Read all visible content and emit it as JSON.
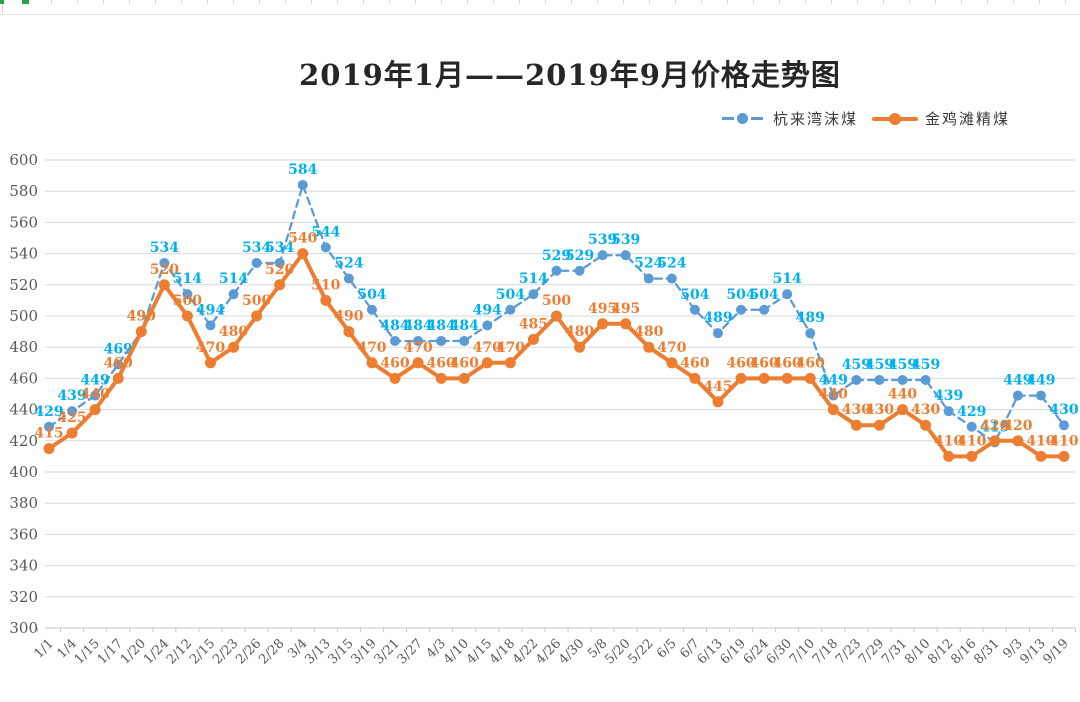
{
  "chart_data": {
    "type": "line",
    "title": "2019年1月——2019年9月价格走势图",
    "categories": [
      "1/1",
      "1/4",
      "1/15",
      "1/17",
      "1/20",
      "1/24",
      "2/12",
      "2/15",
      "2/23",
      "2/26",
      "2/28",
      "3/4",
      "3/13",
      "3/15",
      "3/19",
      "3/21",
      "3/27",
      "4/3",
      "4/10",
      "4/15",
      "4/18",
      "4/22",
      "4/26",
      "4/30",
      "5/8",
      "5/20",
      "5/22",
      "6/5",
      "6/7",
      "6/13",
      "6/19",
      "6/24",
      "6/30",
      "7/10",
      "7/18",
      "7/23",
      "7/29",
      "7/31",
      "8/10",
      "8/12",
      "8/16",
      "8/31",
      "9/3",
      "9/13",
      "9/19"
    ],
    "series": [
      {
        "name": "杭来湾沫煤",
        "style": "dashed",
        "color": "#5B9BD5",
        "label_color": "#00B0F0",
        "values": [
          429,
          439,
          449,
          469,
          490,
          534,
          514,
          494,
          514,
          534,
          534,
          584,
          544,
          524,
          504,
          484,
          484,
          484,
          484,
          494,
          504,
          514,
          529,
          529,
          539,
          539,
          524,
          524,
          504,
          489,
          504,
          504,
          514,
          489,
          449,
          459,
          459,
          459,
          459,
          439,
          429,
          419,
          449,
          449,
          430
        ]
      },
      {
        "name": "金鸡滩精煤",
        "style": "solid",
        "color": "#ED7D31",
        "label_color": "#ED7D31",
        "values": [
          415,
          425,
          440,
          460,
          490,
          520,
          500,
          470,
          480,
          500,
          520,
          540,
          510,
          490,
          470,
          460,
          470,
          460,
          460,
          470,
          470,
          485,
          500,
          480,
          495,
          495,
          480,
          470,
          460,
          445,
          460,
          460,
          460,
          460,
          440,
          430,
          430,
          440,
          430,
          410,
          410,
          420,
          420,
          410,
          410
        ]
      }
    ],
    "ylim": [
      300,
      600
    ],
    "ytick_step": 20,
    "ytick_labels": [
      "300",
      "320",
      "340",
      "360",
      "380",
      "400",
      "420",
      "440",
      "460",
      "480",
      "500",
      "520",
      "540",
      "560",
      "580",
      "600"
    ],
    "grid": true,
    "legend_position": "top-right",
    "grid_color": "#D9D9D9",
    "axis_color": "#C6C6C6",
    "tick_label_color": "#595959",
    "title_color": "#262626"
  }
}
